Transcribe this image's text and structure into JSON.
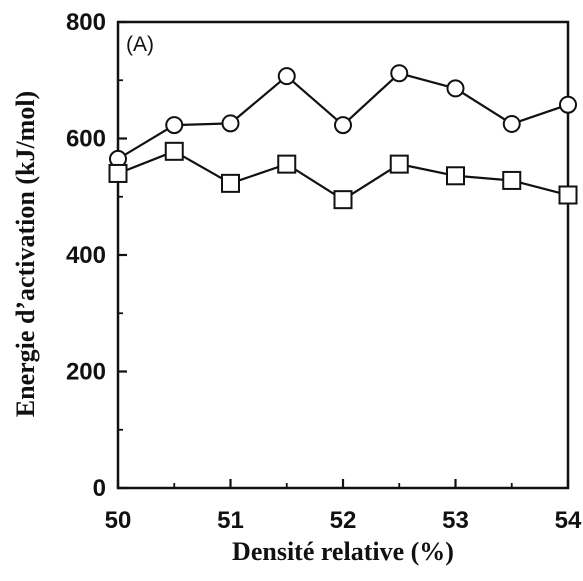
{
  "chart_data": {
    "type": "line",
    "panel_label": "(A)",
    "xlabel": "Densité relative (%)",
    "ylabel": "Energie d’activation (kJ/mol)",
    "xlim": [
      50,
      54
    ],
    "ylim": [
      0,
      800
    ],
    "xticks": [
      "50",
      "51",
      "52",
      "53",
      "54"
    ],
    "yticks": [
      "0",
      "200",
      "400",
      "600",
      "800"
    ],
    "grid": false,
    "x": [
      50,
      50.5,
      51,
      51.5,
      52,
      52.5,
      53,
      53.5,
      54
    ],
    "series": [
      {
        "marker": "circle",
        "values": [
          565,
          623,
          626,
          707,
          623,
          712,
          686,
          625,
          658
        ]
      },
      {
        "marker": "square",
        "values": [
          540,
          578,
          523,
          556,
          495,
          556,
          536,
          528,
          503
        ]
      }
    ],
    "colors": {
      "line": "#111111",
      "marker_fill": "#ffffff"
    }
  }
}
